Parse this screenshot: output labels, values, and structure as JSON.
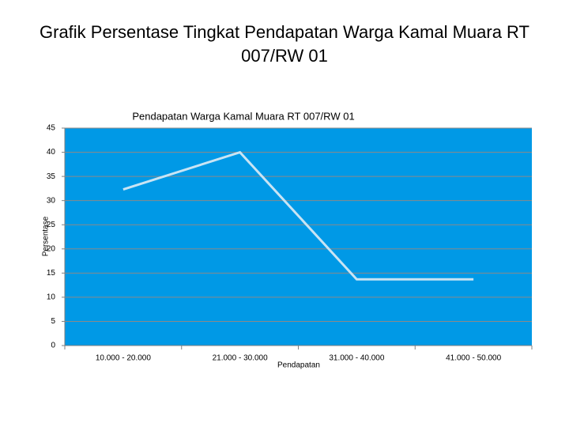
{
  "chart_data": {
    "type": "line",
    "slide_title": "Grafik Persentase Tingkat Pendapatan Warga Kamal Muara RT 007/RW 01",
    "title": "Pendapatan Warga Kamal Muara RT 007/RW 01",
    "xlabel": "Pendapatan",
    "ylabel": "Persentase",
    "categories": [
      "10.000 - 20.000",
      "21.000 - 30.000",
      "31.000 - 40.000",
      "41.000 - 50.000"
    ],
    "values": [
      32.3,
      40,
      13.7,
      13.7
    ],
    "color": "#c8e4f4",
    "background": "#0099e6",
    "ylim": [
      0,
      45
    ],
    "yticks": [
      0,
      5,
      10,
      15,
      20,
      25,
      30,
      35,
      40,
      45
    ],
    "grid": true
  }
}
